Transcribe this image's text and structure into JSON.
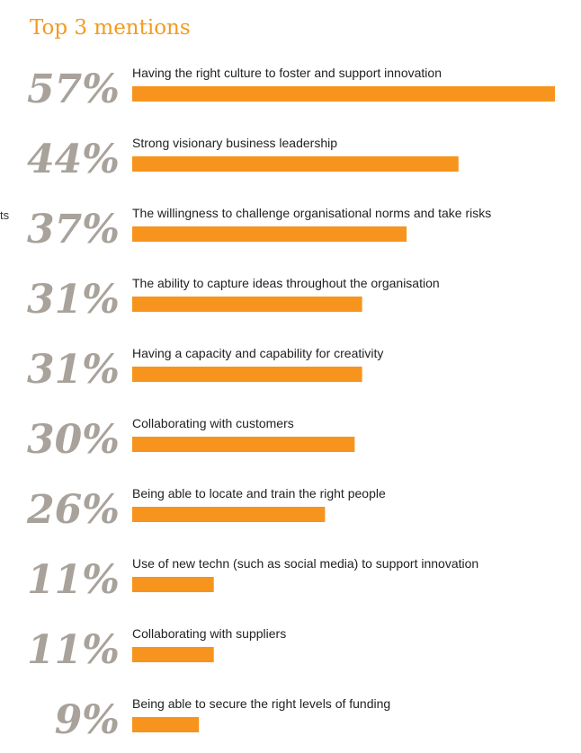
{
  "title": "Top 3 mentions",
  "side_fragment": "ts",
  "colors": {
    "accent": "#f39b20",
    "bar": "#f7941d",
    "percent_text": "#a8a29b",
    "label_text": "#222222"
  },
  "chart_data": {
    "type": "bar",
    "orientation": "horizontal",
    "title": "Top 3 mentions",
    "unit": "%",
    "xlim": [
      0,
      57
    ],
    "grid": false,
    "legend": "none",
    "categories": [
      "Having the right culture to foster and support innovation",
      "Strong visionary business leadership",
      "The willingness to challenge organisational norms and take risks",
      "The ability to capture ideas throughout the organisation",
      "Having a capacity and capability for creativity",
      "Collaborating with customers",
      "Being able to locate and train the right people",
      "Use of new techn (such as social media) to support innovation",
      "Collaborating with suppliers",
      "Being able to secure the right levels of funding"
    ],
    "values": [
      57,
      44,
      37,
      31,
      31,
      30,
      26,
      11,
      11,
      9
    ],
    "value_labels": [
      "57%",
      "44%",
      "37%",
      "31%",
      "31%",
      "30%",
      "26%",
      "11%",
      "11%",
      "9%"
    ]
  }
}
